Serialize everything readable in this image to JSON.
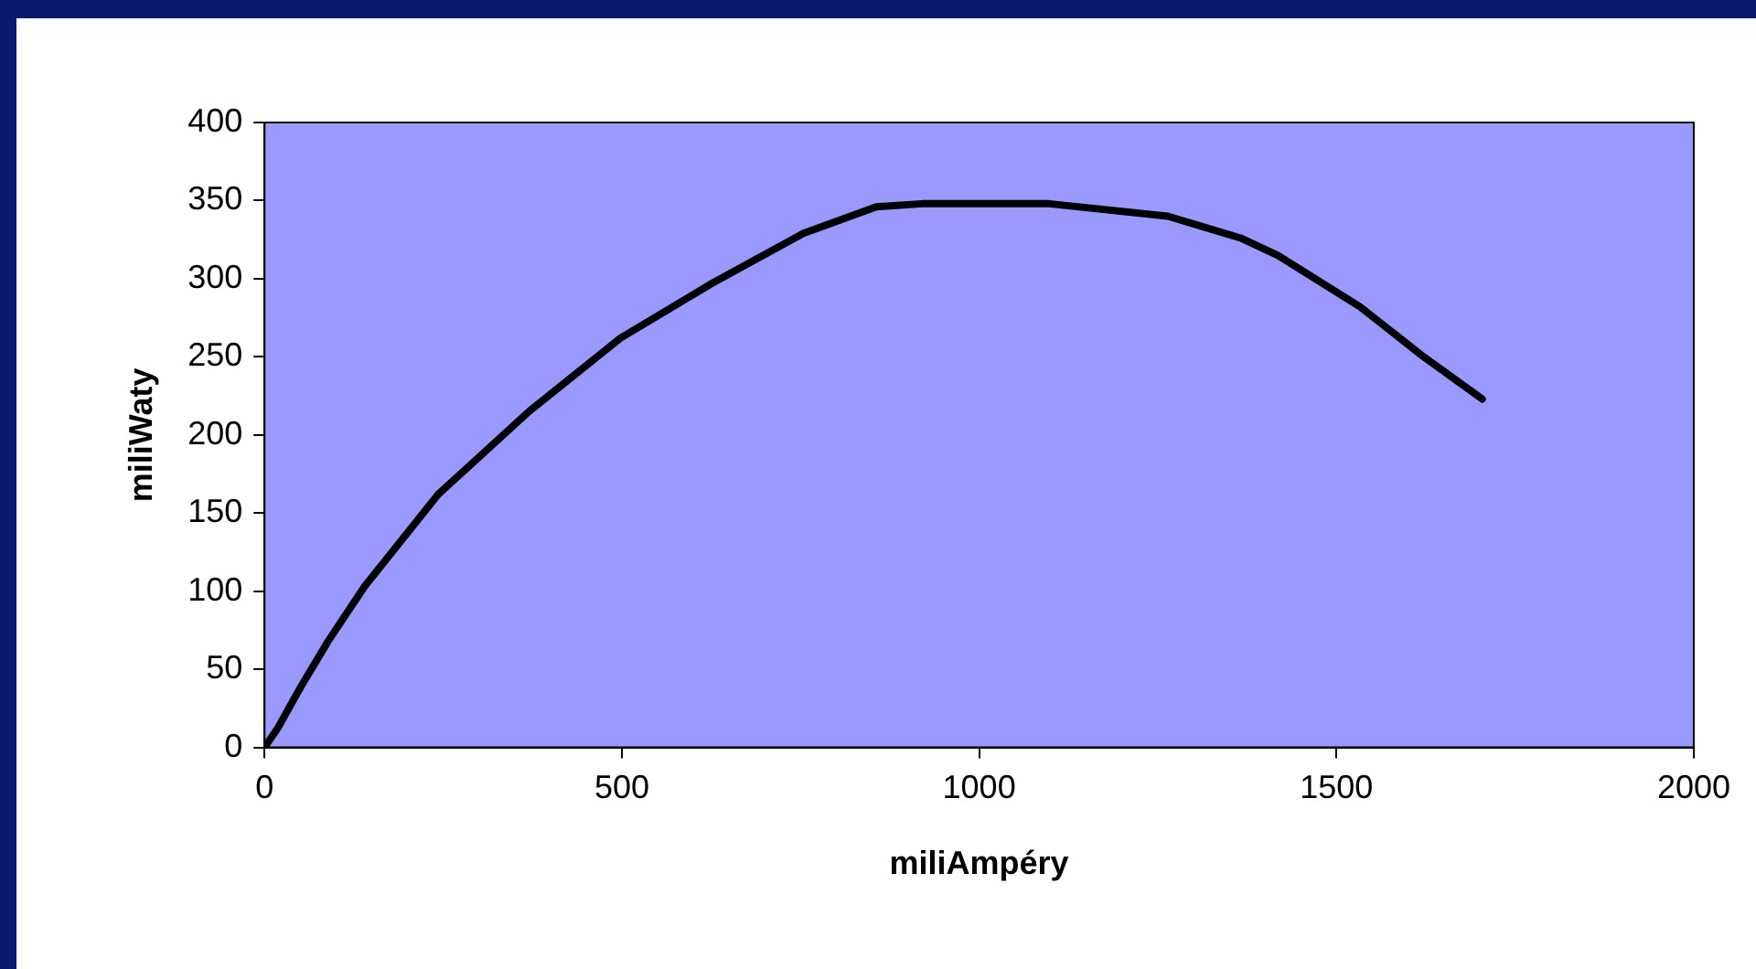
{
  "chart_data": {
    "type": "line",
    "xlabel": "miliAmpéry",
    "ylabel": "miliWaty",
    "x": [
      0,
      18,
      51,
      89,
      140,
      243,
      370,
      498,
      626,
      754,
      856,
      920,
      1098,
      1264,
      1366,
      1418,
      1533,
      1622,
      1704
    ],
    "series": [
      {
        "color": "#000000",
        "values": [
          0,
          12,
          39,
          68,
          103,
          162,
          215,
          262,
          297,
          329,
          346,
          348,
          348,
          340,
          326,
          315,
          282,
          250,
          223
        ]
      }
    ],
    "xlim": [
      0,
      2000
    ],
    "xticks": [
      0,
      500,
      1000,
      1500,
      2000
    ],
    "ylim": [
      0,
      400
    ],
    "yticks": [
      0,
      50,
      100,
      150,
      200,
      250,
      300,
      350,
      400
    ],
    "grid": false,
    "legend": false,
    "marker": "none",
    "line_style": "solid"
  }
}
